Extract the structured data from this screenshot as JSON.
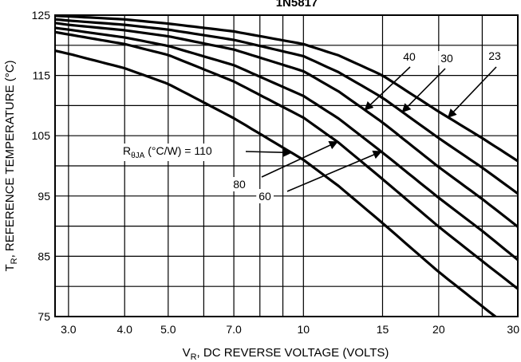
{
  "chart_data": {
    "type": "line",
    "title": "1N5817",
    "xlabel": "V",
    "xlabel_sub": "R",
    "xlabel_rest": ", DC REVERSE VOLTAGE (VOLTS)",
    "ylabel": "T",
    "ylabel_sub": "R",
    "ylabel_rest": ", REFERENCE TEMPERATURE (°C)",
    "x_scale": "log",
    "xlim": [
      2.8,
      30
    ],
    "ylim": [
      75,
      125
    ],
    "x_ticks": [
      "3.0",
      "4.0",
      "5.0",
      "7.0",
      "10",
      "15",
      "20",
      "30"
    ],
    "y_ticks": [
      "125",
      "115",
      "105",
      "95",
      "85",
      "75"
    ],
    "x": [
      2.8,
      3,
      4,
      5,
      7,
      10,
      12,
      15,
      20,
      25,
      30
    ],
    "series": [
      {
        "name": "23",
        "values": [
          124.9,
          124.8,
          124.3,
          123.6,
          122.3,
          120.2,
          118.3,
          115.0,
          109.0,
          104.6,
          100.8
        ]
      },
      {
        "name": "30",
        "values": [
          124.3,
          124.1,
          123.4,
          122.6,
          120.9,
          118.2,
          115.5,
          111.3,
          104.6,
          99.7,
          95.4
        ]
      },
      {
        "name": "40",
        "values": [
          123.7,
          123.4,
          122.5,
          121.5,
          119.3,
          115.7,
          112.3,
          107.2,
          99.8,
          94.5,
          89.9
        ]
      },
      {
        "name": "60",
        "values": [
          122.9,
          122.6,
          121.3,
          119.9,
          116.7,
          111.6,
          107.8,
          102.2,
          94.7,
          89.2,
          84.4
        ]
      },
      {
        "name": "80",
        "values": [
          122.2,
          121.8,
          120.2,
          118.4,
          114.0,
          108.0,
          103.8,
          97.8,
          89.9,
          84.2,
          79.6
        ]
      },
      {
        "name": "110",
        "values": [
          119.1,
          118.6,
          116.2,
          113.6,
          107.9,
          101.0,
          96.6,
          90.5,
          82.4,
          76.7,
          72.1
        ]
      }
    ],
    "annotations": [
      {
        "series": "110",
        "label": "R",
        "sub": "θJA",
        "rest": " (°C/W) = 110",
        "at_x": 9.4
      },
      {
        "series": "80",
        "label": "80",
        "at_x": 11.9
      },
      {
        "series": "60",
        "label": "60",
        "at_x": 14.9
      },
      {
        "series": "40",
        "label": "40",
        "at_x": 13.7
      },
      {
        "series": "30",
        "label": "30",
        "at_x": 16.6
      },
      {
        "series": "23",
        "label": "23",
        "at_x": 21.0
      }
    ],
    "grid": true,
    "legend": "none"
  }
}
